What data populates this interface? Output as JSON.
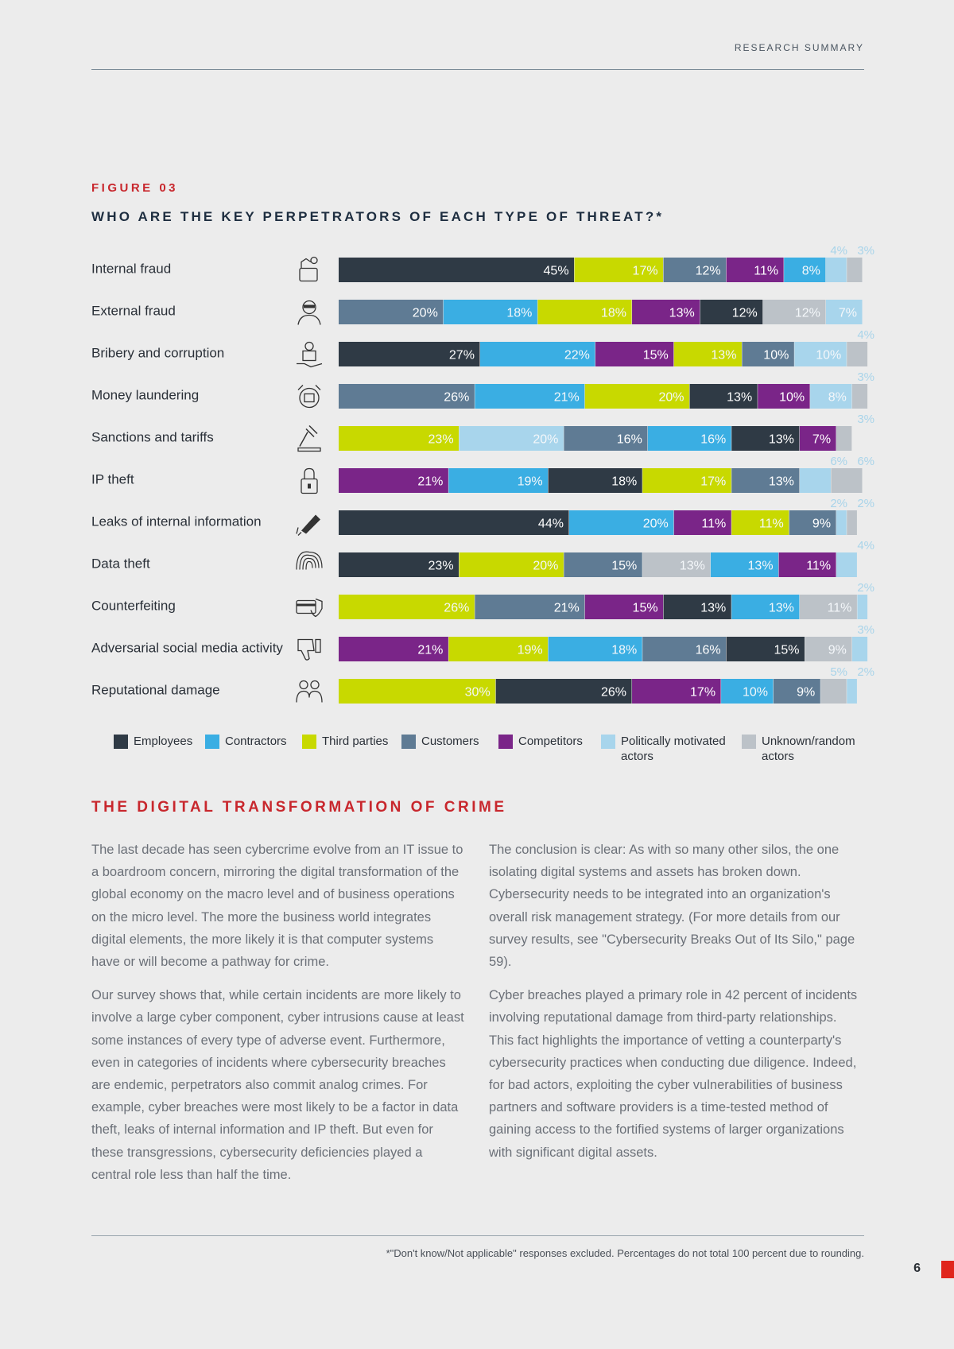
{
  "header": {
    "label": "RESEARCH SUMMARY"
  },
  "figure": {
    "number": "FIGURE 03",
    "title": "WHO ARE THE KEY PERPETRATORS OF EACH TYPE OF THREAT?*"
  },
  "colors": {
    "Employees": "#2f3a45",
    "Contractors": "#3aaee3",
    "Third parties": "#c8d900",
    "Customers": "#5f7b94",
    "Competitors": "#7a2588",
    "Politically motivated actors": "#a8d5ec",
    "Unknown/random actors": "#bcc2c8"
  },
  "chart_data": {
    "type": "bar",
    "orientation": "horizontal",
    "stacked": true,
    "xlim": [
      0,
      100
    ],
    "legend_position": "bottom",
    "categories": [
      "Internal fraud",
      "External fraud",
      "Bribery and corruption",
      "Money laundering",
      "Sanctions and tariffs",
      "IP theft",
      "Leaks of internal information",
      "Data theft",
      "Counterfeiting",
      "Adversarial social media activity",
      "Reputational damage"
    ],
    "icons": [
      "hand-money-icon",
      "masked-person-icon",
      "bribe-handshake-icon",
      "money-wash-icon",
      "gavel-icon",
      "padlock-icon",
      "usb-leak-icon",
      "fingerprint-icon",
      "credit-card-shield-icon",
      "thumbs-down-icon",
      "people-group-icon"
    ],
    "rows": [
      {
        "segments": [
          {
            "series": "Employees",
            "value": 45,
            "label": "45%"
          },
          {
            "series": "Third parties",
            "value": 17,
            "label": "17%"
          },
          {
            "series": "Customers",
            "value": 12,
            "label": "12%"
          },
          {
            "series": "Competitors",
            "value": 11,
            "label": "11%"
          },
          {
            "series": "Contractors",
            "value": 8,
            "label": "8%"
          },
          {
            "series": "Politically motivated actors",
            "value": 4,
            "label": "4%"
          },
          {
            "series": "Unknown/random actors",
            "value": 3,
            "label": "3%"
          }
        ]
      },
      {
        "segments": [
          {
            "series": "Customers",
            "value": 20,
            "label": "20%"
          },
          {
            "series": "Contractors",
            "value": 18,
            "label": "18%"
          },
          {
            "series": "Third parties",
            "value": 18,
            "label": "18%"
          },
          {
            "series": "Competitors",
            "value": 13,
            "label": "13%"
          },
          {
            "series": "Employees",
            "value": 12,
            "label": "12%"
          },
          {
            "series": "Unknown/random actors",
            "value": 12,
            "label": "12%"
          },
          {
            "series": "Politically motivated actors",
            "value": 7,
            "label": "7%"
          }
        ]
      },
      {
        "segments": [
          {
            "series": "Employees",
            "value": 27,
            "label": "27%"
          },
          {
            "series": "Contractors",
            "value": 22,
            "label": "22%"
          },
          {
            "series": "Competitors",
            "value": 15,
            "label": "15%"
          },
          {
            "series": "Third parties",
            "value": 13,
            "label": "13%"
          },
          {
            "series": "Customers",
            "value": 10,
            "label": "10%"
          },
          {
            "series": "Politically motivated actors",
            "value": 10,
            "label": "10%"
          },
          {
            "series": "Unknown/random actors",
            "value": 4,
            "label": "4%"
          }
        ]
      },
      {
        "segments": [
          {
            "series": "Customers",
            "value": 26,
            "label": "26%"
          },
          {
            "series": "Contractors",
            "value": 21,
            "label": "21%"
          },
          {
            "series": "Third parties",
            "value": 20,
            "label": "20%"
          },
          {
            "series": "Employees",
            "value": 13,
            "label": "13%"
          },
          {
            "series": "Competitors",
            "value": 10,
            "label": "10%"
          },
          {
            "series": "Politically motivated actors",
            "value": 8,
            "label": "8%"
          },
          {
            "series": "Unknown/random actors",
            "value": 3,
            "label": "3%"
          }
        ]
      },
      {
        "segments": [
          {
            "series": "Third parties",
            "value": 23,
            "label": "23%"
          },
          {
            "series": "Politically motivated actors",
            "value": 20,
            "label": "20%"
          },
          {
            "series": "Customers",
            "value": 16,
            "label": "16%"
          },
          {
            "series": "Contractors",
            "value": 16,
            "label": "16%"
          },
          {
            "series": "Employees",
            "value": 13,
            "label": "13%"
          },
          {
            "series": "Competitors",
            "value": 7,
            "label": "7%"
          },
          {
            "series": "Unknown/random actors",
            "value": 3,
            "label": "3%"
          }
        ]
      },
      {
        "segments": [
          {
            "series": "Competitors",
            "value": 21,
            "label": "21%"
          },
          {
            "series": "Contractors",
            "value": 19,
            "label": "19%"
          },
          {
            "series": "Employees",
            "value": 18,
            "label": "18%"
          },
          {
            "series": "Third parties",
            "value": 17,
            "label": "17%"
          },
          {
            "series": "Customers",
            "value": 13,
            "label": "13%"
          },
          {
            "series": "Politically motivated actors",
            "value": 6,
            "label": "6%"
          },
          {
            "series": "Unknown/random actors",
            "value": 6,
            "label": "6%"
          }
        ]
      },
      {
        "segments": [
          {
            "series": "Employees",
            "value": 44,
            "label": "44%"
          },
          {
            "series": "Contractors",
            "value": 20,
            "label": "20%"
          },
          {
            "series": "Competitors",
            "value": 11,
            "label": "11%"
          },
          {
            "series": "Third parties",
            "value": 11,
            "label": "11%"
          },
          {
            "series": "Customers",
            "value": 9,
            "label": "9%"
          },
          {
            "series": "Politically motivated actors",
            "value": 2,
            "label": "2%"
          },
          {
            "series": "Unknown/random actors",
            "value": 2,
            "label": "2%"
          }
        ]
      },
      {
        "segments": [
          {
            "series": "Employees",
            "value": 23,
            "label": "23%"
          },
          {
            "series": "Third parties",
            "value": 20,
            "label": "20%"
          },
          {
            "series": "Customers",
            "value": 15,
            "label": "15%"
          },
          {
            "series": "Unknown/random actors",
            "value": 13,
            "label": "13%"
          },
          {
            "series": "Contractors",
            "value": 13,
            "label": "13%"
          },
          {
            "series": "Competitors",
            "value": 11,
            "label": "11%"
          },
          {
            "series": "Politically motivated actors",
            "value": 4,
            "label": "4%"
          }
        ]
      },
      {
        "segments": [
          {
            "series": "Third parties",
            "value": 26,
            "label": "26%"
          },
          {
            "series": "Customers",
            "value": 21,
            "label": "21%"
          },
          {
            "series": "Competitors",
            "value": 15,
            "label": "15%"
          },
          {
            "series": "Employees",
            "value": 13,
            "label": "13%"
          },
          {
            "series": "Contractors",
            "value": 13,
            "label": "13%"
          },
          {
            "series": "Unknown/random actors",
            "value": 11,
            "label": "11%"
          },
          {
            "series": "Politically motivated actors",
            "value": 2,
            "label": "2%"
          }
        ]
      },
      {
        "segments": [
          {
            "series": "Competitors",
            "value": 21,
            "label": "21%"
          },
          {
            "series": "Third parties",
            "value": 19,
            "label": "19%"
          },
          {
            "series": "Contractors",
            "value": 18,
            "label": "18%"
          },
          {
            "series": "Customers",
            "value": 16,
            "label": "16%"
          },
          {
            "series": "Employees",
            "value": 15,
            "label": "15%"
          },
          {
            "series": "Unknown/random actors",
            "value": 9,
            "label": "9%"
          },
          {
            "series": "Politically motivated actors",
            "value": 3,
            "label": "3%"
          }
        ]
      },
      {
        "segments": [
          {
            "series": "Third parties",
            "value": 30,
            "label": "30%"
          },
          {
            "series": "Employees",
            "value": 26,
            "label": "26%"
          },
          {
            "series": "Competitors",
            "value": 17,
            "label": "17%"
          },
          {
            "series": "Contractors",
            "value": 10,
            "label": "10%"
          },
          {
            "series": "Customers",
            "value": 9,
            "label": "9%"
          },
          {
            "series": "Unknown/random actors",
            "value": 5,
            "label": "5%"
          },
          {
            "series": "Politically motivated actors",
            "value": 2,
            "label": "2%"
          }
        ]
      }
    ],
    "legend": [
      {
        "name": "Employees"
      },
      {
        "name": "Contractors"
      },
      {
        "name": "Third parties"
      },
      {
        "name": "Customers"
      },
      {
        "name": "Competitors"
      },
      {
        "name": "Politically motivated actors",
        "lines": [
          "Politically motivated",
          "actors"
        ]
      },
      {
        "name": "Unknown/random actors",
        "lines": [
          "Unknown/random",
          "actors"
        ]
      }
    ]
  },
  "section": {
    "title": "THE DIGITAL TRANSFORMATION OF CRIME",
    "left_paragraphs": [
      "The last decade has seen cybercrime evolve from an IT issue to a boardroom concern, mirroring the digital transformation of the global economy on the macro level and of business operations on the micro level. The more the business world integrates digital elements, the more likely it is that computer systems have or will become a pathway for crime.",
      "Our survey shows that, while certain incidents are more likely to involve a large cyber component, cyber intrusions cause at least some instances of every type of adverse event. Furthermore, even in categories of incidents where cybersecurity breaches are endemic, perpetrators also commit analog crimes. For example, cyber breaches were most likely to be a factor in data theft, leaks of internal information and IP theft. But even for these transgressions, cybersecurity deficiencies played a central role less than half the time."
    ],
    "right_paragraphs": [
      "The conclusion is clear: As with so many other silos, the one isolating digital systems and assets has broken down. Cybersecurity needs to be integrated into an organization's overall risk management strategy. (For more details from our survey results, see \"Cybersecurity Breaks Out of Its Silo,\" page 59).",
      "Cyber breaches played a primary role in 42 percent of incidents involving reputational damage from third-party relationships. This fact highlights the importance of vetting a counterparty's cybersecurity practices when conducting due diligence. Indeed, for bad actors, exploiting the cyber vulnerabilities of business partners and software providers is a time-tested method of gaining access to the fortified systems of larger organizations with significant digital assets."
    ]
  },
  "footnote": "*\"Don't know/Not applicable\" responses excluded. Percentages do not total 100 percent due to rounding.",
  "page_number": "6"
}
